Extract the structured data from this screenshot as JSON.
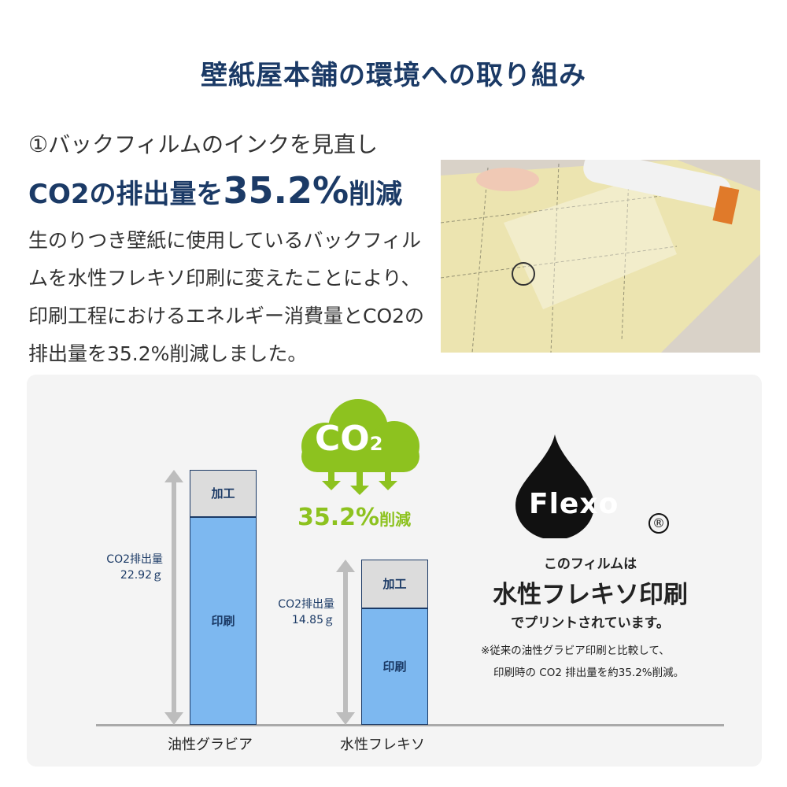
{
  "title": "壁紙屋本舗の環境への取り組み",
  "subtitle": "①バックフィルムのインクを見直し",
  "headline": {
    "pre": "CO2の排出量を",
    "value": "35.2%",
    "post": "削減"
  },
  "body": "生のりつき壁紙に使用しているバックフィルムを水性フレキソ印刷に変えたことにより、印刷工程におけるエネルギー消費量とCO2の排出量を35.2%削減しました。",
  "cloud": {
    "label": "CO",
    "sub": "2",
    "reduction": "35.2%",
    "reduction_suffix": "削減",
    "color": "#8dc21f"
  },
  "flexo": {
    "logo": "Flexo",
    "reg": "®",
    "line1": "このフィルムは",
    "line2": "水性フレキソ印刷",
    "line3": "でプリントされています。",
    "note1": "※従来の油性グラビア印刷と比較して、",
    "note2": "印刷時の CO2 排出量を約35.2%削減。"
  },
  "chart_data": {
    "type": "bar",
    "stacked": true,
    "categories": [
      "油性グラビア",
      "水性フレキソ"
    ],
    "series": [
      {
        "name": "印刷",
        "values": [
          18.7,
          10.5
        ],
        "color": "#7db8f0"
      },
      {
        "name": "加工",
        "values": [
          4.22,
          4.35
        ],
        "color": "#dcdcdc"
      }
    ],
    "totals": [
      22.92,
      14.85
    ],
    "total_labels": [
      {
        "line1": "CO2排出量",
        "line2": "22.92ｇ"
      },
      {
        "line1": "CO2排出量",
        "line2": "14.85ｇ"
      }
    ],
    "ylim": [
      0,
      22.92
    ],
    "grid": false
  }
}
